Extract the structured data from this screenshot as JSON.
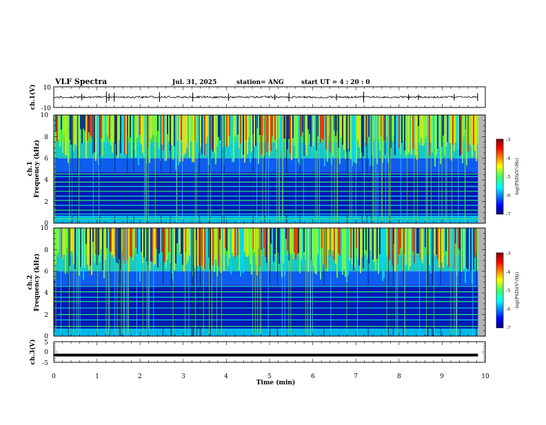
{
  "header": {
    "title": "VLF Spectra",
    "date": "Jul. 31, 2025",
    "station": "station= ANG",
    "start_ut": "start  UT =   4 : 20 : 0"
  },
  "chart_data": [
    {
      "type": "line",
      "name": "ch1-waveform",
      "ylabel": "ch.1(V)",
      "ylim": [
        -10,
        10
      ],
      "yticks": [
        "10",
        "-10"
      ],
      "xlim": [
        0,
        10
      ],
      "x_data_end": 9.83,
      "baseline": 0,
      "noise_amplitude": 0.6,
      "spikes_min": [
        0.65,
        1.22,
        1.28,
        1.4,
        2.45,
        3.22,
        4.05,
        5.12,
        5.45,
        6.55,
        7.18,
        8.22,
        8.45,
        9.28,
        9.82
      ]
    },
    {
      "type": "heatmap",
      "name": "ch1-spectrogram",
      "ylabel_line1": "ch.1",
      "ylabel_line2": "Frequency  (kHz)",
      "ylim": [
        0,
        10
      ],
      "yticks": [
        "0",
        "2",
        "4",
        "6",
        "8",
        "10"
      ],
      "xlim": [
        0,
        10
      ],
      "x_data_end": 9.83,
      "hum_lines_khz": [
        0.4,
        0.85,
        1.2,
        1.65,
        2.1,
        2.5,
        2.95,
        3.4,
        3.8,
        4.3,
        4.55
      ],
      "colorbar": {
        "label": "log(PSD)(V²/Hz)",
        "range": [
          -7,
          -3
        ],
        "ticks": [
          "-3",
          "-4",
          "-5",
          "-6",
          "-7"
        ]
      }
    },
    {
      "type": "heatmap",
      "name": "ch2-spectrogram",
      "ylabel_line1": "ch.2",
      "ylabel_line2": "Frequency  (kHz)",
      "ylim": [
        0,
        10
      ],
      "yticks": [
        "0",
        "2",
        "4",
        "6",
        "8",
        "10"
      ],
      "xlim": [
        0,
        10
      ],
      "x_data_end": 9.83,
      "hum_lines_khz": [
        0.9,
        1.5,
        2.0,
        2.6,
        3.2,
        3.6,
        4.1,
        4.6
      ],
      "colorbar": {
        "label": "log(PSD)(V²/Hz)",
        "range": [
          -7,
          -3
        ],
        "ticks": [
          "-3",
          "-4",
          "-5",
          "-6",
          "-7"
        ]
      }
    },
    {
      "type": "line",
      "name": "ch3-waveform",
      "ylabel": "ch.3(V)",
      "ylim": [
        -5,
        5
      ],
      "yticks": [
        "5",
        "0",
        "-5"
      ],
      "xlim": [
        0,
        10
      ],
      "x_data_end": 9.83,
      "baseline": -1.5,
      "xlabel": "Time  (min)",
      "xticks": [
        "0",
        "1",
        "2",
        "3",
        "4",
        "5",
        "6",
        "7",
        "8",
        "9",
        "10"
      ]
    }
  ]
}
